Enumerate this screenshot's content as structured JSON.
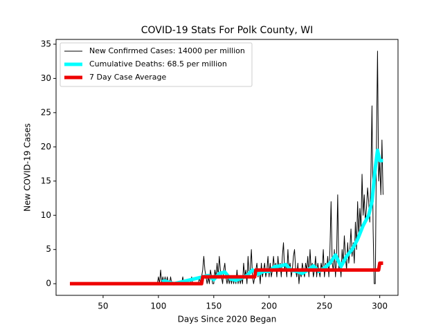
{
  "chart_data": {
    "type": "line",
    "title": "COVID-19 Stats For Polk County, WI",
    "x_label": "Days Since 2020 Began",
    "y_label": "New COVID-19 Cases",
    "xlim": [
      7.5,
      316.5
    ],
    "ylim": [
      -1.7,
      35.7
    ],
    "xticks": [
      50,
      100,
      150,
      200,
      250,
      300
    ],
    "yticks": [
      0,
      5,
      10,
      15,
      20,
      25,
      30,
      35
    ],
    "legend": "upper left",
    "series": [
      {
        "name": "New Confirmed Cases: 14000 per million",
        "color": "#000000",
        "linewidth": 1,
        "x": [
          20,
          99,
          100,
          101,
          102,
          103,
          104,
          105,
          106,
          107,
          108,
          109,
          110,
          111,
          112,
          113,
          114,
          115,
          116,
          117,
          118,
          119,
          120,
          121,
          122,
          123,
          124,
          125,
          126,
          127,
          128,
          129,
          130,
          131,
          132,
          133,
          134,
          135,
          136,
          137,
          138,
          139,
          140,
          141,
          142,
          143,
          144,
          145,
          146,
          147,
          148,
          149,
          150,
          151,
          152,
          153,
          154,
          155,
          156,
          157,
          158,
          159,
          160,
          161,
          162,
          163,
          164,
          165,
          166,
          167,
          168,
          169,
          170,
          171,
          172,
          173,
          174,
          175,
          176,
          177,
          178,
          179,
          180,
          181,
          182,
          183,
          184,
          185,
          186,
          187,
          188,
          189,
          190,
          191,
          192,
          193,
          194,
          195,
          196,
          197,
          198,
          199,
          200,
          201,
          202,
          203,
          204,
          205,
          206,
          207,
          208,
          209,
          210,
          211,
          212,
          213,
          214,
          215,
          216,
          217,
          218,
          219,
          220,
          221,
          222,
          223,
          224,
          225,
          226,
          227,
          228,
          229,
          230,
          231,
          232,
          233,
          234,
          235,
          236,
          237,
          238,
          239,
          240,
          241,
          242,
          243,
          244,
          245,
          246,
          247,
          248,
          249,
          250,
          251,
          252,
          253,
          254,
          255,
          256,
          257,
          258,
          259,
          260,
          261,
          262,
          263,
          264,
          265,
          266,
          267,
          268,
          269,
          270,
          271,
          272,
          273,
          274,
          275,
          276,
          277,
          278,
          279,
          280,
          281,
          282,
          283,
          284,
          285,
          286,
          287,
          288,
          289,
          290,
          291,
          292,
          293,
          294,
          295,
          296,
          297,
          298,
          299,
          300,
          301,
          302,
          303
        ],
        "values": [
          0,
          0,
          1,
          0,
          2,
          0,
          1,
          0,
          1,
          0,
          1,
          0,
          0,
          1,
          0,
          0,
          0,
          0,
          0,
          0,
          0,
          0,
          0,
          0,
          1,
          0,
          0,
          0,
          0,
          0,
          0,
          0,
          1,
          0,
          0,
          0,
          0,
          0,
          0,
          1,
          0,
          1,
          2,
          4,
          2,
          1,
          0,
          1,
          0,
          2,
          1,
          0,
          0,
          2,
          1,
          3,
          1,
          4,
          2,
          1,
          0,
          2,
          3,
          1,
          0,
          1,
          0,
          1,
          0,
          1,
          0,
          1,
          0,
          2,
          0,
          1,
          0,
          1,
          0,
          3,
          1,
          2,
          0,
          4,
          1,
          2,
          5,
          1,
          0,
          1,
          2,
          3,
          1,
          2,
          0,
          3,
          1,
          2,
          3,
          1,
          2,
          4,
          1,
          3,
          1,
          2,
          4,
          2,
          3,
          1,
          4,
          2,
          3,
          1,
          4,
          6,
          2,
          3,
          1,
          5,
          2,
          3,
          1,
          2,
          4,
          5,
          2,
          1,
          3,
          0,
          2,
          1,
          3,
          2,
          1,
          3,
          2,
          4,
          1,
          5,
          2,
          3,
          1,
          2,
          4,
          1,
          3,
          2,
          1,
          3,
          2,
          5,
          1,
          3,
          2,
          4,
          1,
          5,
          12,
          3,
          2,
          5,
          1,
          4,
          13,
          2,
          3,
          1,
          5,
          3,
          7,
          4,
          2,
          6,
          3,
          5,
          8,
          4,
          6,
          3,
          9,
          5,
          12,
          7,
          11,
          8,
          16,
          10,
          13,
          9,
          11,
          14,
          12,
          9,
          16,
          26,
          8,
          0,
          0,
          20,
          34,
          15,
          18,
          13,
          21,
          13
        ]
      },
      {
        "name": "Cumulative Deaths: 68.5 per million",
        "color": "#00ffff",
        "linewidth": 5,
        "x": [
          103,
          106,
          110,
          114,
          140,
          145,
          150,
          155,
          160,
          165,
          170,
          175,
          180,
          185,
          190,
          195,
          200,
          205,
          210,
          215,
          220,
          225,
          230,
          235,
          240,
          245,
          250,
          255,
          260,
          265,
          270,
          275,
          280,
          285,
          290,
          293,
          296,
          298,
          300,
          303
        ],
        "values": [
          0.3,
          0.4,
          0.2,
          0,
          1,
          1.2,
          0.6,
          1.5,
          1.7,
          0.7,
          0.5,
          0.8,
          1.2,
          2,
          1.4,
          1.8,
          1.8,
          2.5,
          2.6,
          2.8,
          2,
          1.8,
          1.5,
          2,
          2.6,
          1.8,
          2.3,
          3,
          4.2,
          2.5,
          4,
          5,
          6.5,
          8.5,
          10,
          12,
          17,
          19.5,
          18,
          18
        ]
      },
      {
        "name": "7 Day Case Average",
        "color": "#ee0000",
        "linewidth": 5,
        "x": [
          20,
          139,
          140,
          187,
          188,
          299,
          300,
          303
        ],
        "values": [
          0,
          0,
          1,
          1,
          2,
          2,
          3,
          3
        ]
      }
    ]
  }
}
